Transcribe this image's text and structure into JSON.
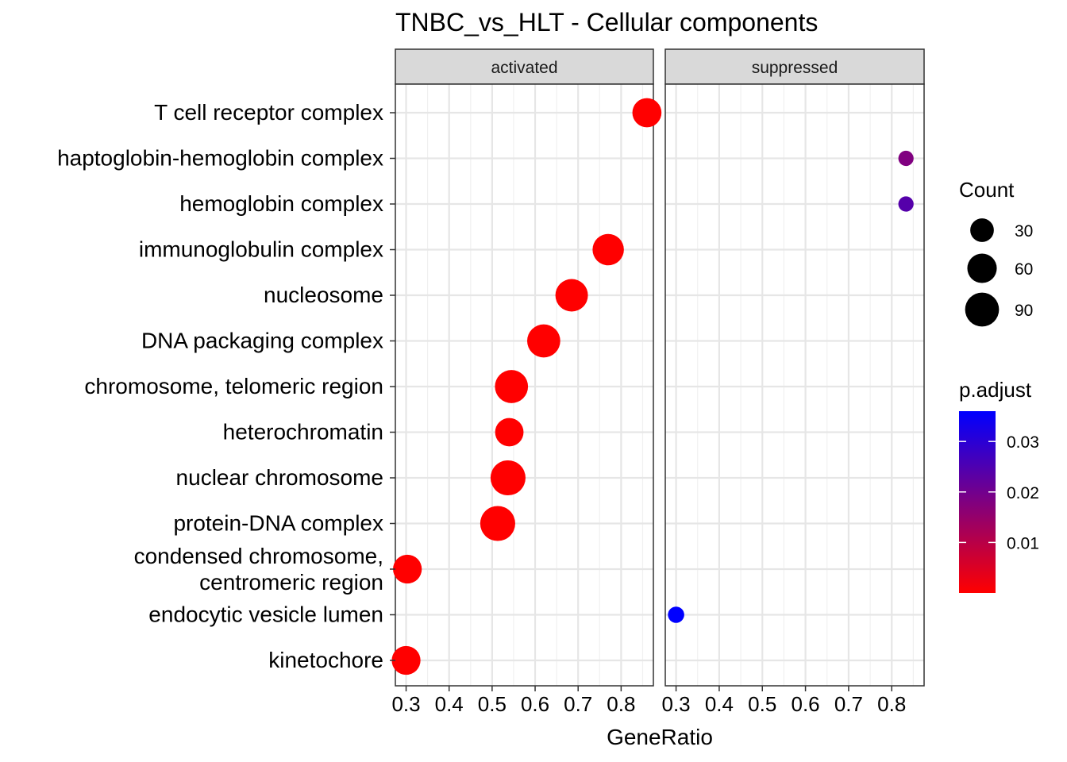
{
  "chart_data": {
    "type": "scatter",
    "title": "TNBC_vs_HLT - Cellular components",
    "xlabel": "GeneRatio",
    "ylabel": "",
    "xlim": [
      0.275,
      0.875
    ],
    "x_ticks": [
      0.3,
      0.4,
      0.5,
      0.6,
      0.7,
      0.8
    ],
    "x_tick_labels": [
      "0.3",
      "0.4",
      "0.5",
      "0.6",
      "0.7",
      "0.8"
    ],
    "grid": true,
    "categories": [
      "T cell receptor complex",
      "haptoglobin-hemoglobin complex",
      "hemoglobin complex",
      "immunoglobulin complex",
      "nucleosome",
      "DNA packaging complex",
      "chromosome, telomeric region",
      "heterochromatin",
      "nuclear chromosome",
      "protein-DNA complex",
      "condensed chromosome,\ncentromeric region",
      "endocytic vesicle lumen",
      "kinetochore"
    ],
    "panels": [
      {
        "name": "activated",
        "points": [
          {
            "category": "T cell receptor complex",
            "x": 0.86,
            "count": 58,
            "p_adjust": 0.0
          },
          {
            "category": "immunoglobulin complex",
            "x": 0.77,
            "count": 72,
            "p_adjust": 0.0
          },
          {
            "category": "nucleosome",
            "x": 0.685,
            "count": 80,
            "p_adjust": 0.0
          },
          {
            "category": "DNA packaging complex",
            "x": 0.62,
            "count": 84,
            "p_adjust": 0.0
          },
          {
            "category": "chromosome, telomeric region",
            "x": 0.545,
            "count": 84,
            "p_adjust": 0.0
          },
          {
            "category": "heterochromatin",
            "x": 0.54,
            "count": 54,
            "p_adjust": 0.0
          },
          {
            "category": "nuclear chromosome",
            "x": 0.537,
            "count": 98,
            "p_adjust": 0.0
          },
          {
            "category": "protein-DNA complex",
            "x": 0.513,
            "count": 98,
            "p_adjust": 0.0
          },
          {
            "category": "condensed chromosome,\ncentromeric region",
            "x": 0.303,
            "count": 56,
            "p_adjust": 0.0
          },
          {
            "category": "kinetochore",
            "x": 0.3,
            "count": 56,
            "p_adjust": 0.0
          }
        ]
      },
      {
        "name": "suppressed",
        "points": [
          {
            "category": "haptoglobin-hemoglobin complex",
            "x": 0.833,
            "count": 5,
            "p_adjust": 0.018
          },
          {
            "category": "hemoglobin complex",
            "x": 0.833,
            "count": 5,
            "p_adjust": 0.024
          },
          {
            "category": "endocytic vesicle lumen",
            "x": 0.3,
            "count": 7,
            "p_adjust": 0.036
          }
        ]
      }
    ],
    "size_legend": {
      "title": "Count",
      "values": [
        30,
        60,
        90
      ],
      "labels": [
        "30",
        "60",
        "90"
      ]
    },
    "color_legend": {
      "title": "p.adjust",
      "range": [
        0,
        0.036
      ],
      "ticks": [
        0.01,
        0.02,
        0.03
      ],
      "tick_labels": [
        "0.01",
        "0.02",
        "0.03"
      ],
      "low_color": "#ff0000",
      "high_color": "#0000ff"
    },
    "legend_position": "right"
  }
}
